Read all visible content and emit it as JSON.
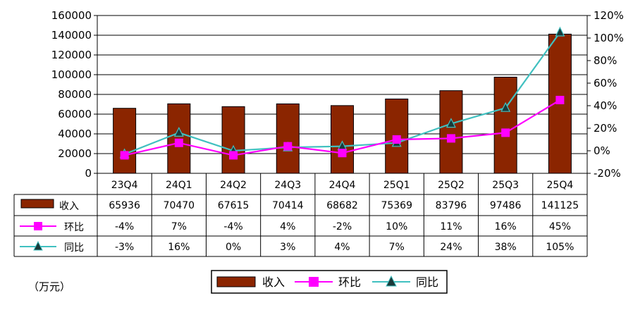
{
  "chart_data": {
    "type": "bar+line",
    "categories": [
      "23Q4",
      "24Q1",
      "24Q2",
      "24Q3",
      "24Q4",
      "25Q1",
      "25Q2",
      "25Q3",
      "25Q4"
    ],
    "series": [
      {
        "name": "收入",
        "kind": "bar",
        "axis": "left",
        "color": "#8B2500",
        "values": [
          65936,
          70470,
          67615,
          70414,
          68682,
          75369,
          83796,
          97486,
          141125
        ]
      },
      {
        "name": "环比",
        "kind": "line",
        "axis": "right",
        "marker": "square",
        "color": "#FF00FF",
        "values": [
          -4,
          7,
          -4,
          4,
          -2,
          10,
          11,
          16,
          45
        ],
        "labels": [
          "-4%",
          "7%",
          "-4%",
          "4%",
          "-2%",
          "10%",
          "11%",
          "16%",
          "45%"
        ]
      },
      {
        "name": "同比",
        "kind": "line",
        "axis": "right",
        "marker": "triangle",
        "color": "#40C0C0",
        "values": [
          -3,
          16,
          0,
          3,
          4,
          7,
          24,
          38,
          105
        ],
        "labels": [
          "-3%",
          "16%",
          "0%",
          "3%",
          "4%",
          "7%",
          "24%",
          "38%",
          "105%"
        ]
      }
    ],
    "left_axis": {
      "min": 0,
      "max": 160000,
      "step": 20000,
      "ticks": [
        "0",
        "20000",
        "40000",
        "60000",
        "80000",
        "100000",
        "120000",
        "140000",
        "160000"
      ]
    },
    "right_axis": {
      "min": -20,
      "max": 120,
      "step": 20,
      "ticks": [
        "-20%",
        "0%",
        "20%",
        "40%",
        "60%",
        "80%",
        "100%",
        "120%"
      ]
    },
    "revenue_labels": [
      "65936",
      "70470",
      "67615",
      "70414",
      "68682",
      "75369",
      "83796",
      "97486",
      "141125"
    ],
    "unit_label": "（万元）",
    "legend": [
      "收入",
      "环比",
      "同比"
    ]
  }
}
